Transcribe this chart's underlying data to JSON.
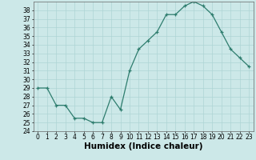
{
  "xlabel": "Humidex (Indice chaleur)",
  "x": [
    0,
    1,
    2,
    3,
    4,
    5,
    6,
    7,
    8,
    9,
    10,
    11,
    12,
    13,
    14,
    15,
    16,
    17,
    18,
    19,
    20,
    21,
    22,
    23
  ],
  "y": [
    29,
    29,
    27,
    27,
    25.5,
    25.5,
    25,
    25,
    28,
    26.5,
    31,
    33.5,
    34.5,
    35.5,
    37.5,
    37.5,
    38.5,
    39,
    38.5,
    37.5,
    35.5,
    33.5,
    32.5,
    31.5
  ],
  "ylim": [
    24,
    39
  ],
  "yticks": [
    24,
    25,
    26,
    27,
    28,
    29,
    30,
    31,
    32,
    33,
    34,
    35,
    36,
    37,
    38
  ],
  "line_color": "#2e7d6e",
  "marker": "+",
  "bg_color": "#cce8e8",
  "grid_color": "#aed4d4",
  "tick_label_fontsize": 5.5,
  "xlabel_fontsize": 7.5
}
